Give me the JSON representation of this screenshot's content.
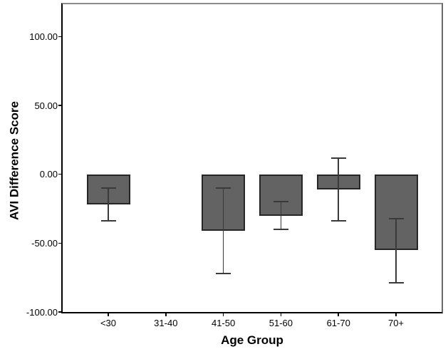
{
  "chart_data": {
    "type": "bar",
    "xlabel": "Age Group",
    "ylabel": "AVI Difference Score",
    "categories": [
      "<30",
      "31-40",
      "41-50",
      "51-60",
      "61-70",
      "70+"
    ],
    "values": [
      -22,
      null,
      -41,
      -30,
      -11,
      -55
    ],
    "error_high": [
      -10,
      null,
      -10,
      -20,
      12,
      -32
    ],
    "error_low": [
      -34,
      null,
      -72,
      -40,
      -34,
      -79
    ],
    "ylim": [
      -100,
      123.5
    ],
    "yticks": [
      100,
      50,
      0,
      -50,
      -100
    ],
    "ytick_labels": [
      "100.00",
      "50.00",
      "0.00",
      "-50.00",
      "-100.00"
    ],
    "grid": false,
    "legend": null,
    "colors": {
      "bar_fill": "#636363",
      "bar_border": "#262626",
      "error_bar": "#3a3a3a",
      "axis_line": "#000000",
      "frame_top": "#8c8c8c",
      "frame_right": "#6a6a6a",
      "text": "#000000",
      "background": "#ffffff"
    }
  }
}
